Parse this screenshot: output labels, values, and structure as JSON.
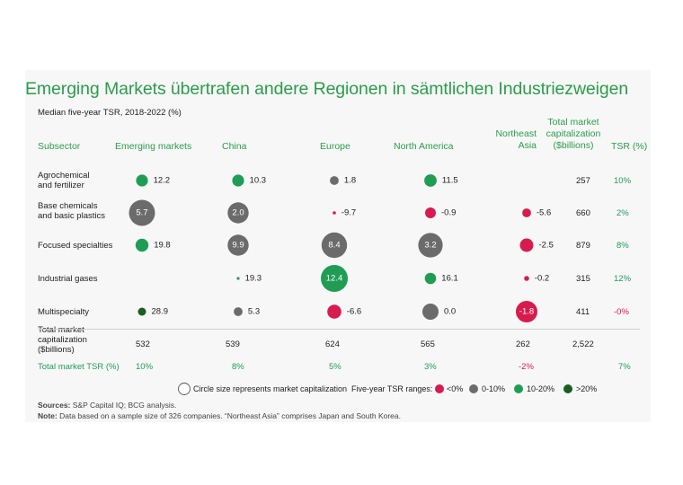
{
  "title": "Emerging Markets übertrafen andere Regionen in sämtlichen Industriezweigen",
  "colors": {
    "green_title": "#2a9d4b",
    "neg": "#d81b4e",
    "low": "#6b6b6b",
    "mid": "#1f9d55",
    "high": "#1b5e20",
    "panel": "#f7f7f7"
  },
  "chart_data": {
    "type": "table",
    "title": "Emerging Markets übertrafen andere Regionen in sämtlichen Industriezweigen",
    "subtitle": "Median five-year TSR, 2018-2022 (%)",
    "headers": {
      "subsector": "Subsector",
      "regions": [
        "Emerging markets",
        "China",
        "Europe",
        "North America",
        "Northeast\nAsia"
      ],
      "cap": "Total market\ncapitalization\n($billions)",
      "tsr": "TSR (%)"
    },
    "rows": [
      {
        "label": "Agrochemical\nand fertilizer",
        "values": [
          12.2,
          10.3,
          1.8,
          11.5,
          null
        ],
        "labels": [
          "12.2",
          "10.3",
          "1.8",
          "11.5",
          ""
        ],
        "caps": [
          55,
          55,
          30,
          60,
          null
        ],
        "total_cap": "257",
        "total_tsr": "10%"
      },
      {
        "label": "Base chemicals\nand basic plastics",
        "values": [
          5.7,
          2.0,
          -9.7,
          -0.9,
          -5.6
        ],
        "labels": [
          "5.7",
          "2.0",
          "-9.7",
          "-0.9",
          "-5.6"
        ],
        "caps": [
          260,
          170,
          4,
          45,
          30
        ],
        "total_cap": "660",
        "total_tsr": "2%"
      },
      {
        "label": "Focused specialties",
        "values": [
          19.8,
          9.9,
          8.4,
          3.2,
          -2.5
        ],
        "labels": [
          "19.8",
          "9.9",
          "8.4",
          "3.2",
          "-2.5"
        ],
        "caps": [
          65,
          170,
          250,
          230,
          70
        ],
        "total_cap": "879",
        "total_tsr": "8%"
      },
      {
        "label": "Industrial gases",
        "values": [
          null,
          19.3,
          12.4,
          16.1,
          -0.2
        ],
        "labels": [
          "",
          "19.3",
          "12.4",
          "16.1",
          "-0.2"
        ],
        "caps": [
          null,
          3,
          280,
          50,
          10
        ],
        "total_cap": "315",
        "total_tsr": "12%"
      },
      {
        "label": "Multispecialty",
        "values": [
          28.9,
          5.3,
          -6.6,
          0.0,
          -1.8
        ],
        "labels": [
          "28.9",
          "5.3",
          "-6.6",
          "0.0",
          "-1.8"
        ],
        "caps": [
          25,
          30,
          75,
          100,
          180
        ],
        "total_cap": "411",
        "total_tsr": "-0%"
      }
    ],
    "totals": {
      "cap_label": "Total market\ncapitalization\n($billions)",
      "caps": [
        "532",
        "539",
        "624",
        "565",
        "262"
      ],
      "grand_cap": "2,522",
      "tsr_label": "Total market TSR (%)",
      "tsrs": [
        "10%",
        "8%",
        "5%",
        "3%",
        "-2%"
      ],
      "grand_tsr": "7%"
    },
    "legend": {
      "size_note": "Circle size represents market capitalization",
      "ranges_label": "Five-year TSR ranges:",
      "ranges": [
        "<0%",
        "0-10%",
        "10-20%",
        ">20%"
      ]
    }
  },
  "footnotes": {
    "sources_label": "Sources:",
    "sources": "S&P Capital IQ; BCG analysis.",
    "note_label": "Note:",
    "note": "Data based on a sample size of 326 companies. “Northeast Asia” comprises Japan and South Korea."
  }
}
